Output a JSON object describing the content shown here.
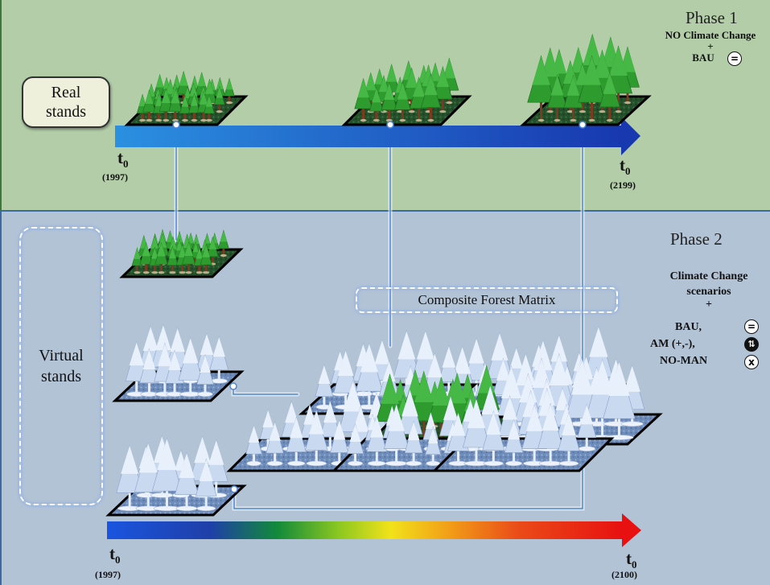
{
  "phase1": {
    "title": "Phase 1",
    "scenario_line1": "NO Climate Change",
    "plus": "+",
    "bau": "BAU",
    "real_stands_line1": "Real",
    "real_stands_line2": "stands",
    "t_label": "t",
    "t_sub": "0",
    "start_year": "(1997)",
    "end_year": "(2199)"
  },
  "phase2": {
    "title": "Phase 2",
    "scenario_line1": "Climate Change",
    "scenario_line2": "scenarios",
    "plus": "+",
    "option_bau": "BAU,",
    "option_am": "AM (+,-),",
    "option_noman": "NO-MAN",
    "virtual_stands_line1": "Virtual",
    "virtual_stands_line2": "stands",
    "composite_label": "Composite Forest Matrix",
    "t_label": "t",
    "t_sub": "0",
    "start_year": "(1997)",
    "end_year": "(2100)"
  },
  "symbols": {
    "equal": "=",
    "updown": "⇅",
    "cross": "x"
  },
  "colors": {
    "phase1_bg": "#b2cda8",
    "phase2_bg": "#b3c3d6",
    "arrow1_start": "#1f86d8",
    "arrow1_end": "#1a3fb0",
    "green_tree": "#2e9b2e",
    "frosted_tree": "#c9d9f0",
    "plot_green": "#1e4a22",
    "plot_blue": "#6f8db8"
  }
}
